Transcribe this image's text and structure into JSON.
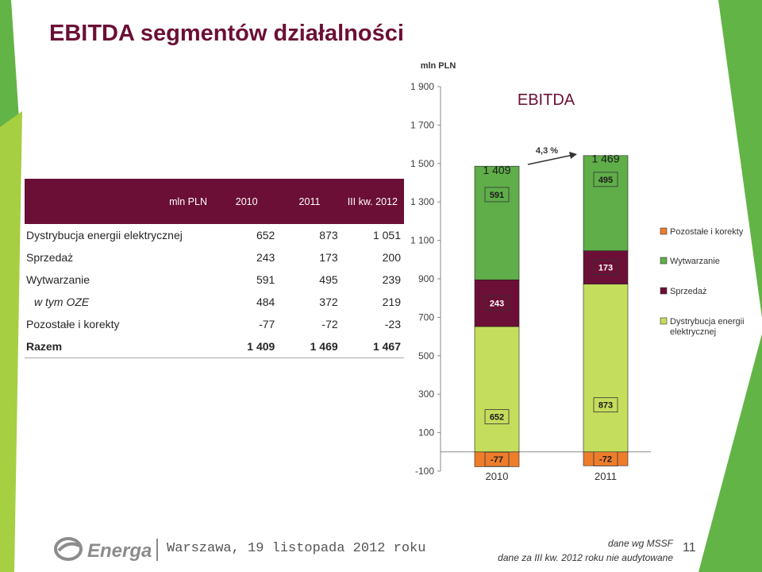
{
  "slide": {
    "title": "EBITDA segmentów działalności",
    "table": {
      "headers": [
        "mln PLN",
        "2010",
        "2011",
        "III kw. 2012"
      ],
      "rows": [
        {
          "label": "Dystrybucja energii elektrycznej",
          "values": [
            "652",
            "873",
            "1 051"
          ]
        },
        {
          "label": "Sprzedaż",
          "values": [
            "243",
            "173",
            "200"
          ]
        },
        {
          "label": "Wytwarzanie",
          "values": [
            "591",
            "495",
            "239"
          ]
        },
        {
          "label": "w tym OZE",
          "values": [
            "484",
            "372",
            "219"
          ]
        },
        {
          "label": "Pozostałe i korekty",
          "values": [
            "-77",
            "-72",
            "-23"
          ]
        },
        {
          "label": "Razem",
          "values": [
            "1 409",
            "1 469",
            "1 467"
          ]
        }
      ]
    },
    "footer": {
      "brand": "Energa",
      "location": "Warszawa, 19 listopada 2012 roku",
      "note_line1": "dane wg MSSF",
      "note_line2": "dane za III kw. 2012 roku nie audytowane",
      "page": "11"
    }
  },
  "chart_data": {
    "type": "bar",
    "stacked": true,
    "title": "EBITDA",
    "unit_label": "mln PLN",
    "categories": [
      "2010",
      "2011"
    ],
    "ylim": [
      -100,
      1900
    ],
    "yticks": [
      -100,
      100,
      300,
      500,
      700,
      900,
      1100,
      1300,
      1500,
      1700,
      1900
    ],
    "ytick_labels": [
      "-100",
      "100",
      "300",
      "500",
      "700",
      "900",
      "1 100",
      "1 300",
      "1 500",
      "1 700",
      "1 900"
    ],
    "series": [
      {
        "name": "Pozostałe i korekty",
        "color": "#ee7d2b",
        "values": [
          -77,
          -72
        ],
        "labels": [
          "-77",
          "-72"
        ]
      },
      {
        "name": "Dystrybucja energii elektrycznej",
        "color": "#c5dd5c",
        "values": [
          652,
          873
        ],
        "labels": [
          "652",
          "873"
        ]
      },
      {
        "name": "Sprzedaż",
        "color": "#6b0f36",
        "values": [
          243,
          173
        ],
        "labels": [
          "243",
          "173"
        ]
      },
      {
        "name": "Wytwarzanie",
        "color": "#5fae49",
        "values": [
          591,
          495
        ],
        "labels": [
          "591",
          "495"
        ]
      }
    ],
    "legend_order": [
      "Pozostałe i korekty",
      "Wytwarzanie",
      "Sprzedaż",
      "Dystrybucja energii elektrycznej"
    ],
    "totals": [
      1409,
      1469
    ],
    "total_labels": [
      "1 409",
      "1 469"
    ],
    "growth_label": "4,3 %",
    "legend_position": "right",
    "grid": false
  }
}
